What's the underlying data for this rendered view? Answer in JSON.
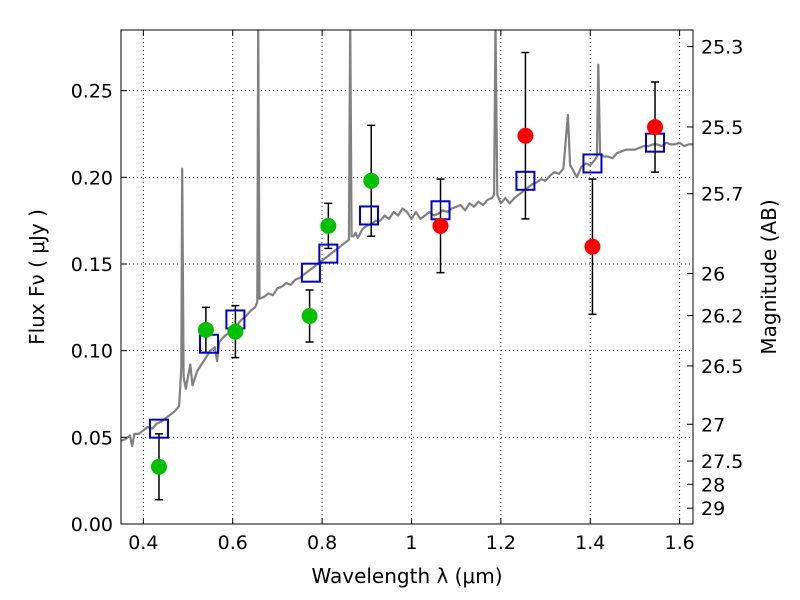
{
  "chart_data": {
    "type": "scatter",
    "xlabel": "Wavelength  λ (μm)",
    "ylabel": "Flux  Fν  ( μJy )",
    "y2label": "Magnitude (AB)",
    "xlim": [
      0.35,
      1.63
    ],
    "ylim": [
      0.0,
      0.285
    ],
    "grid": true,
    "x_ticks": [
      {
        "value": 0.4,
        "label": "0.4"
      },
      {
        "value": 0.6,
        "label": "0.6"
      },
      {
        "value": 0.8,
        "label": "0.8"
      },
      {
        "value": 1.0,
        "label": "1"
      },
      {
        "value": 1.2,
        "label": "1.2"
      },
      {
        "value": 1.4,
        "label": "1.4"
      },
      {
        "value": 1.6,
        "label": "1.6"
      }
    ],
    "y_ticks": [
      {
        "value": 0.0,
        "label": "0.00"
      },
      {
        "value": 0.05,
        "label": "0.05"
      },
      {
        "value": 0.1,
        "label": "0.10"
      },
      {
        "value": 0.15,
        "label": "0.15"
      },
      {
        "value": 0.2,
        "label": "0.20"
      },
      {
        "value": 0.25,
        "label": "0.25"
      }
    ],
    "y2_ticks": [
      {
        "mag": 25.3,
        "label": "25.3"
      },
      {
        "mag": 25.5,
        "label": "25.5"
      },
      {
        "mag": 25.7,
        "label": "25.7"
      },
      {
        "mag": 26.0,
        "label": "26"
      },
      {
        "mag": 26.2,
        "label": "26.2"
      },
      {
        "mag": 26.5,
        "label": "26.5"
      },
      {
        "mag": 27.0,
        "label": "27"
      },
      {
        "mag": 27.5,
        "label": "27.5"
      },
      {
        "mag": 28.0,
        "label": "28"
      },
      {
        "mag": 29.0,
        "label": "29"
      }
    ],
    "template_spectrum": {
      "color": "#808080",
      "points": [
        [
          0.35,
          0.048
        ],
        [
          0.36,
          0.049
        ],
        [
          0.37,
          0.051
        ],
        [
          0.375,
          0.045
        ],
        [
          0.38,
          0.052
        ],
        [
          0.39,
          0.052
        ],
        [
          0.4,
          0.054
        ],
        [
          0.41,
          0.056
        ],
        [
          0.42,
          0.055
        ],
        [
          0.43,
          0.058
        ],
        [
          0.44,
          0.059
        ],
        [
          0.45,
          0.061
        ],
        [
          0.46,
          0.063
        ],
        [
          0.47,
          0.065
        ],
        [
          0.48,
          0.068
        ],
        [
          0.485,
          0.09
        ],
        [
          0.487,
          0.205
        ],
        [
          0.49,
          0.085
        ],
        [
          0.495,
          0.078
        ],
        [
          0.5,
          0.085
        ],
        [
          0.505,
          0.092
        ],
        [
          0.51,
          0.08
        ],
        [
          0.52,
          0.088
        ],
        [
          0.53,
          0.092
        ],
        [
          0.54,
          0.096
        ],
        [
          0.55,
          0.1
        ],
        [
          0.56,
          0.102
        ],
        [
          0.565,
          0.094
        ],
        [
          0.57,
          0.105
        ],
        [
          0.58,
          0.108
        ],
        [
          0.59,
          0.11
        ],
        [
          0.6,
          0.113
        ],
        [
          0.61,
          0.115
        ],
        [
          0.62,
          0.118
        ],
        [
          0.63,
          0.12
        ],
        [
          0.64,
          0.123
        ],
        [
          0.65,
          0.125
        ],
        [
          0.655,
          0.128
        ],
        [
          0.657,
          0.29
        ],
        [
          0.66,
          0.13
        ],
        [
          0.67,
          0.131
        ],
        [
          0.68,
          0.133
        ],
        [
          0.69,
          0.132
        ],
        [
          0.7,
          0.136
        ],
        [
          0.71,
          0.137
        ],
        [
          0.72,
          0.139
        ],
        [
          0.73,
          0.138
        ],
        [
          0.74,
          0.141
        ],
        [
          0.75,
          0.142
        ],
        [
          0.76,
          0.144
        ],
        [
          0.77,
          0.146
        ],
        [
          0.78,
          0.148
        ],
        [
          0.79,
          0.15
        ],
        [
          0.8,
          0.152
        ],
        [
          0.81,
          0.154
        ],
        [
          0.82,
          0.156
        ],
        [
          0.83,
          0.158
        ],
        [
          0.84,
          0.16
        ],
        [
          0.85,
          0.162
        ],
        [
          0.86,
          0.164
        ],
        [
          0.863,
          0.29
        ],
        [
          0.866,
          0.166
        ],
        [
          0.87,
          0.166
        ],
        [
          0.875,
          0.168
        ],
        [
          0.88,
          0.165
        ],
        [
          0.89,
          0.17
        ],
        [
          0.9,
          0.172
        ],
        [
          0.91,
          0.173
        ],
        [
          0.92,
          0.175
        ],
        [
          0.93,
          0.175
        ],
        [
          0.94,
          0.178
        ],
        [
          0.95,
          0.176
        ],
        [
          0.96,
          0.18
        ],
        [
          0.97,
          0.178
        ],
        [
          0.98,
          0.182
        ],
        [
          0.99,
          0.18
        ],
        [
          1.0,
          0.176
        ],
        [
          1.01,
          0.18
        ],
        [
          1.02,
          0.176
        ],
        [
          1.03,
          0.178
        ],
        [
          1.04,
          0.18
        ],
        [
          1.05,
          0.178
        ],
        [
          1.06,
          0.179
        ],
        [
          1.07,
          0.181
        ],
        [
          1.08,
          0.18
        ],
        [
          1.09,
          0.182
        ],
        [
          1.1,
          0.183
        ],
        [
          1.11,
          0.184
        ],
        [
          1.12,
          0.181
        ],
        [
          1.13,
          0.185
        ],
        [
          1.14,
          0.183
        ],
        [
          1.15,
          0.186
        ],
        [
          1.16,
          0.184
        ],
        [
          1.17,
          0.187
        ],
        [
          1.18,
          0.188
        ],
        [
          1.185,
          0.19
        ],
        [
          1.188,
          0.29
        ],
        [
          1.192,
          0.19
        ],
        [
          1.2,
          0.185
        ],
        [
          1.21,
          0.188
        ],
        [
          1.22,
          0.185
        ],
        [
          1.23,
          0.188
        ],
        [
          1.24,
          0.19
        ],
        [
          1.25,
          0.192
        ],
        [
          1.26,
          0.194
        ],
        [
          1.27,
          0.196
        ],
        [
          1.28,
          0.197
        ],
        [
          1.29,
          0.199
        ],
        [
          1.3,
          0.198
        ],
        [
          1.31,
          0.201
        ],
        [
          1.32,
          0.203
        ],
        [
          1.33,
          0.202
        ],
        [
          1.34,
          0.205
        ],
        [
          1.35,
          0.236
        ],
        [
          1.355,
          0.207
        ],
        [
          1.36,
          0.205
        ],
        [
          1.37,
          0.2
        ],
        [
          1.38,
          0.206
        ],
        [
          1.39,
          0.208
        ],
        [
          1.4,
          0.207
        ],
        [
          1.41,
          0.21
        ],
        [
          1.415,
          0.212
        ],
        [
          1.418,
          0.265
        ],
        [
          1.422,
          0.214
        ],
        [
          1.43,
          0.212
        ],
        [
          1.44,
          0.212
        ],
        [
          1.45,
          0.211
        ],
        [
          1.46,
          0.214
        ],
        [
          1.47,
          0.215
        ],
        [
          1.48,
          0.216
        ],
        [
          1.49,
          0.216
        ],
        [
          1.5,
          0.216
        ],
        [
          1.51,
          0.217
        ],
        [
          1.52,
          0.218
        ],
        [
          1.53,
          0.218
        ],
        [
          1.54,
          0.219
        ],
        [
          1.55,
          0.219
        ],
        [
          1.56,
          0.218
        ],
        [
          1.57,
          0.22
        ],
        [
          1.58,
          0.219
        ],
        [
          1.59,
          0.219
        ],
        [
          1.6,
          0.22
        ],
        [
          1.61,
          0.218
        ],
        [
          1.62,
          0.219
        ],
        [
          1.63,
          0.219
        ]
      ]
    },
    "series": [
      {
        "marker": "open-square",
        "color": "#0000c8",
        "points": [
          {
            "x": 0.435,
            "y": 0.055
          },
          {
            "x": 0.547,
            "y": 0.104
          },
          {
            "x": 0.606,
            "y": 0.118
          },
          {
            "x": 0.775,
            "y": 0.145
          },
          {
            "x": 0.814,
            "y": 0.156
          },
          {
            "x": 0.905,
            "y": 0.178
          },
          {
            "x": 1.065,
            "y": 0.181
          },
          {
            "x": 1.255,
            "y": 0.198
          },
          {
            "x": 1.405,
            "y": 0.208
          },
          {
            "x": 1.545,
            "y": 0.22
          }
        ]
      },
      {
        "marker": "filled-circle",
        "color": "#00c000",
        "points": [
          {
            "x": 0.435,
            "y": 0.033,
            "err": 0.019
          },
          {
            "x": 0.54,
            "y": 0.112,
            "err": 0.013
          },
          {
            "x": 0.606,
            "y": 0.111,
            "err": 0.015
          },
          {
            "x": 0.772,
            "y": 0.12,
            "err": 0.015
          },
          {
            "x": 0.814,
            "y": 0.172,
            "err": 0.013
          },
          {
            "x": 0.91,
            "y": 0.198,
            "err": 0.032
          }
        ]
      },
      {
        "marker": "filled-circle",
        "color": "#ff0000",
        "points": [
          {
            "x": 1.065,
            "y": 0.172,
            "err": 0.027
          },
          {
            "x": 1.255,
            "y": 0.224,
            "err": 0.048
          },
          {
            "x": 1.405,
            "y": 0.16,
            "err": 0.039
          },
          {
            "x": 1.545,
            "y": 0.229,
            "err": 0.026
          }
        ]
      }
    ]
  }
}
